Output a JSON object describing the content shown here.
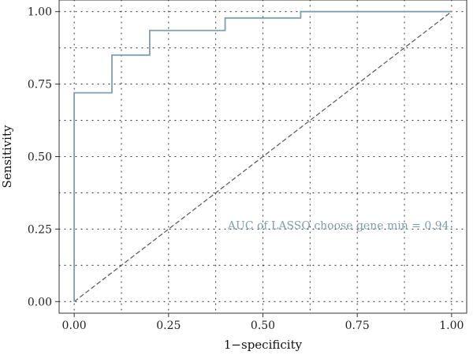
{
  "chart_data": {
    "type": "line",
    "xlabel": "1−specificity",
    "ylabel": "Sensitivity",
    "xlim": [
      -0.04,
      1.04
    ],
    "ylim": [
      -0.04,
      1.04
    ],
    "x_ticks": [
      0.0,
      0.25,
      0.5,
      0.75,
      1.0
    ],
    "x_tick_labels": [
      "0.00",
      "0.25",
      "0.50",
      "0.75",
      "1.00"
    ],
    "y_ticks": [
      0.0,
      0.25,
      0.5,
      0.75,
      1.0
    ],
    "y_tick_labels": [
      "0.00",
      "0.25",
      "0.50",
      "0.75",
      "1.00"
    ],
    "grid": true,
    "grid_style": "dotted",
    "series": [
      {
        "color": "#7fa0aa",
        "style": "step",
        "x": [
          0.0,
          0.0,
          0.1,
          0.1,
          0.2,
          0.2,
          0.4,
          0.4,
          0.6,
          0.6,
          1.0
        ],
        "y": [
          0.0,
          0.72,
          0.72,
          0.85,
          0.85,
          0.935,
          0.935,
          0.978,
          0.978,
          1.0,
          1.0
        ]
      }
    ],
    "reference_line": {
      "x": [
        0,
        1
      ],
      "y": [
        0,
        1
      ],
      "style": "dashed",
      "color": "#555555"
    },
    "annotation": {
      "text": "AUC of LASSO choose gene min = 0.94",
      "x": 0.7,
      "y": 0.25,
      "color": "#7fa0aa"
    }
  }
}
